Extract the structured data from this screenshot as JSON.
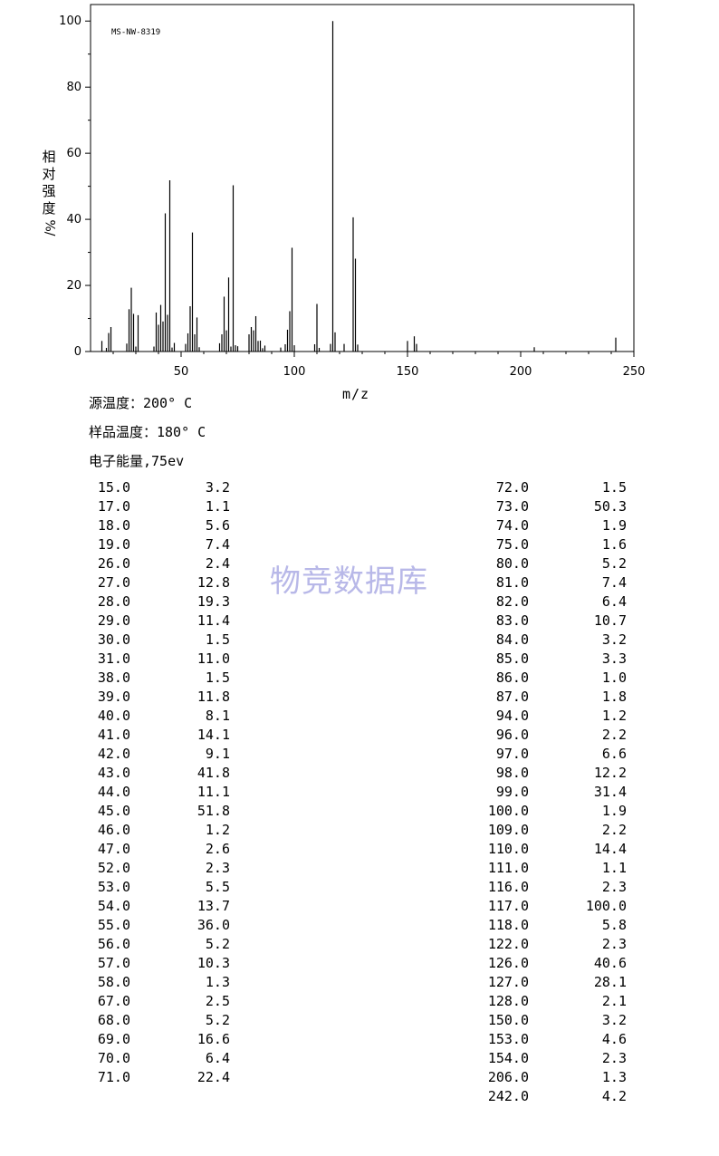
{
  "chart_data": {
    "type": "bar",
    "code": "MS-NW-8319",
    "xlabel": "m/z",
    "ylabel_chars": [
      "相",
      "对",
      "强",
      "度"
    ],
    "ylabel_unit": "%/",
    "xlim": [
      10,
      250
    ],
    "ylim": [
      0,
      105
    ],
    "xticks": [
      50,
      100,
      150,
      200,
      250
    ],
    "yticks": [
      0,
      20,
      40,
      60,
      80,
      100
    ],
    "peaks": [
      [
        15.0,
        3.2
      ],
      [
        17.0,
        1.1
      ],
      [
        18.0,
        5.6
      ],
      [
        19.0,
        7.4
      ],
      [
        26.0,
        2.4
      ],
      [
        27.0,
        12.8
      ],
      [
        28.0,
        19.3
      ],
      [
        29.0,
        11.4
      ],
      [
        30.0,
        1.5
      ],
      [
        31.0,
        11.0
      ],
      [
        38.0,
        1.5
      ],
      [
        39.0,
        11.8
      ],
      [
        40.0,
        8.1
      ],
      [
        41.0,
        14.1
      ],
      [
        42.0,
        9.1
      ],
      [
        43.0,
        41.8
      ],
      [
        44.0,
        11.1
      ],
      [
        45.0,
        51.8
      ],
      [
        46.0,
        1.2
      ],
      [
        47.0,
        2.6
      ],
      [
        52.0,
        2.3
      ],
      [
        53.0,
        5.5
      ],
      [
        54.0,
        13.7
      ],
      [
        55.0,
        36.0
      ],
      [
        56.0,
        5.2
      ],
      [
        57.0,
        10.3
      ],
      [
        58.0,
        1.3
      ],
      [
        67.0,
        2.5
      ],
      [
        68.0,
        5.2
      ],
      [
        69.0,
        16.6
      ],
      [
        70.0,
        6.4
      ],
      [
        71.0,
        22.4
      ],
      [
        72.0,
        1.5
      ],
      [
        73.0,
        50.3
      ],
      [
        74.0,
        1.9
      ],
      [
        75.0,
        1.6
      ],
      [
        80.0,
        5.2
      ],
      [
        81.0,
        7.4
      ],
      [
        82.0,
        6.4
      ],
      [
        83.0,
        10.7
      ],
      [
        84.0,
        3.2
      ],
      [
        85.0,
        3.3
      ],
      [
        86.0,
        1.0
      ],
      [
        87.0,
        1.8
      ],
      [
        94.0,
        1.2
      ],
      [
        96.0,
        2.2
      ],
      [
        97.0,
        6.6
      ],
      [
        98.0,
        12.2
      ],
      [
        99.0,
        31.4
      ],
      [
        100.0,
        1.9
      ],
      [
        109.0,
        2.2
      ],
      [
        110.0,
        14.4
      ],
      [
        111.0,
        1.1
      ],
      [
        116.0,
        2.3
      ],
      [
        117.0,
        100.0
      ],
      [
        118.0,
        5.8
      ],
      [
        122.0,
        2.3
      ],
      [
        126.0,
        40.6
      ],
      [
        127.0,
        28.1
      ],
      [
        128.0,
        2.1
      ],
      [
        150.0,
        3.2
      ],
      [
        153.0,
        4.6
      ],
      [
        154.0,
        2.3
      ],
      [
        206.0,
        1.3
      ],
      [
        242.0,
        4.2
      ]
    ]
  },
  "conditions": {
    "source_temp": "源温度：200° C",
    "sample_temp": "样品温度：180° C",
    "energy": "电子能量,75ev"
  },
  "table": {
    "left": [
      [
        "15.0",
        "3.2"
      ],
      [
        "17.0",
        "1.1"
      ],
      [
        "18.0",
        "5.6"
      ],
      [
        "19.0",
        "7.4"
      ],
      [
        "26.0",
        "2.4"
      ],
      [
        "27.0",
        "12.8"
      ],
      [
        "28.0",
        "19.3"
      ],
      [
        "29.0",
        "11.4"
      ],
      [
        "30.0",
        "1.5"
      ],
      [
        "31.0",
        "11.0"
      ],
      [
        "38.0",
        "1.5"
      ],
      [
        "39.0",
        "11.8"
      ],
      [
        "40.0",
        "8.1"
      ],
      [
        "41.0",
        "14.1"
      ],
      [
        "42.0",
        "9.1"
      ],
      [
        "43.0",
        "41.8"
      ],
      [
        "44.0",
        "11.1"
      ],
      [
        "45.0",
        "51.8"
      ],
      [
        "46.0",
        "1.2"
      ],
      [
        "47.0",
        "2.6"
      ],
      [
        "52.0",
        "2.3"
      ],
      [
        "53.0",
        "5.5"
      ],
      [
        "54.0",
        "13.7"
      ],
      [
        "55.0",
        "36.0"
      ],
      [
        "56.0",
        "5.2"
      ],
      [
        "57.0",
        "10.3"
      ],
      [
        "58.0",
        "1.3"
      ],
      [
        "67.0",
        "2.5"
      ],
      [
        "68.0",
        "5.2"
      ],
      [
        "69.0",
        "16.6"
      ],
      [
        "70.0",
        "6.4"
      ],
      [
        "71.0",
        "22.4"
      ]
    ],
    "right": [
      [
        "72.0",
        "1.5"
      ],
      [
        "73.0",
        "50.3"
      ],
      [
        "74.0",
        "1.9"
      ],
      [
        "75.0",
        "1.6"
      ],
      [
        "80.0",
        "5.2"
      ],
      [
        "81.0",
        "7.4"
      ],
      [
        "82.0",
        "6.4"
      ],
      [
        "83.0",
        "10.7"
      ],
      [
        "84.0",
        "3.2"
      ],
      [
        "85.0",
        "3.3"
      ],
      [
        "86.0",
        "1.0"
      ],
      [
        "87.0",
        "1.8"
      ],
      [
        "94.0",
        "1.2"
      ],
      [
        "96.0",
        "2.2"
      ],
      [
        "97.0",
        "6.6"
      ],
      [
        "98.0",
        "12.2"
      ],
      [
        "99.0",
        "31.4"
      ],
      [
        "100.0",
        "1.9"
      ],
      [
        "109.0",
        "2.2"
      ],
      [
        "110.0",
        "14.4"
      ],
      [
        "111.0",
        "1.1"
      ],
      [
        "116.0",
        "2.3"
      ],
      [
        "117.0",
        "100.0"
      ],
      [
        "118.0",
        "5.8"
      ],
      [
        "122.0",
        "2.3"
      ],
      [
        "126.0",
        "40.6"
      ],
      [
        "127.0",
        "28.1"
      ],
      [
        "128.0",
        "2.1"
      ],
      [
        "150.0",
        "3.2"
      ],
      [
        "153.0",
        "4.6"
      ],
      [
        "154.0",
        "2.3"
      ],
      [
        "206.0",
        "1.3"
      ],
      [
        "242.0",
        "4.2"
      ]
    ]
  },
  "watermark": "物竞数据库"
}
